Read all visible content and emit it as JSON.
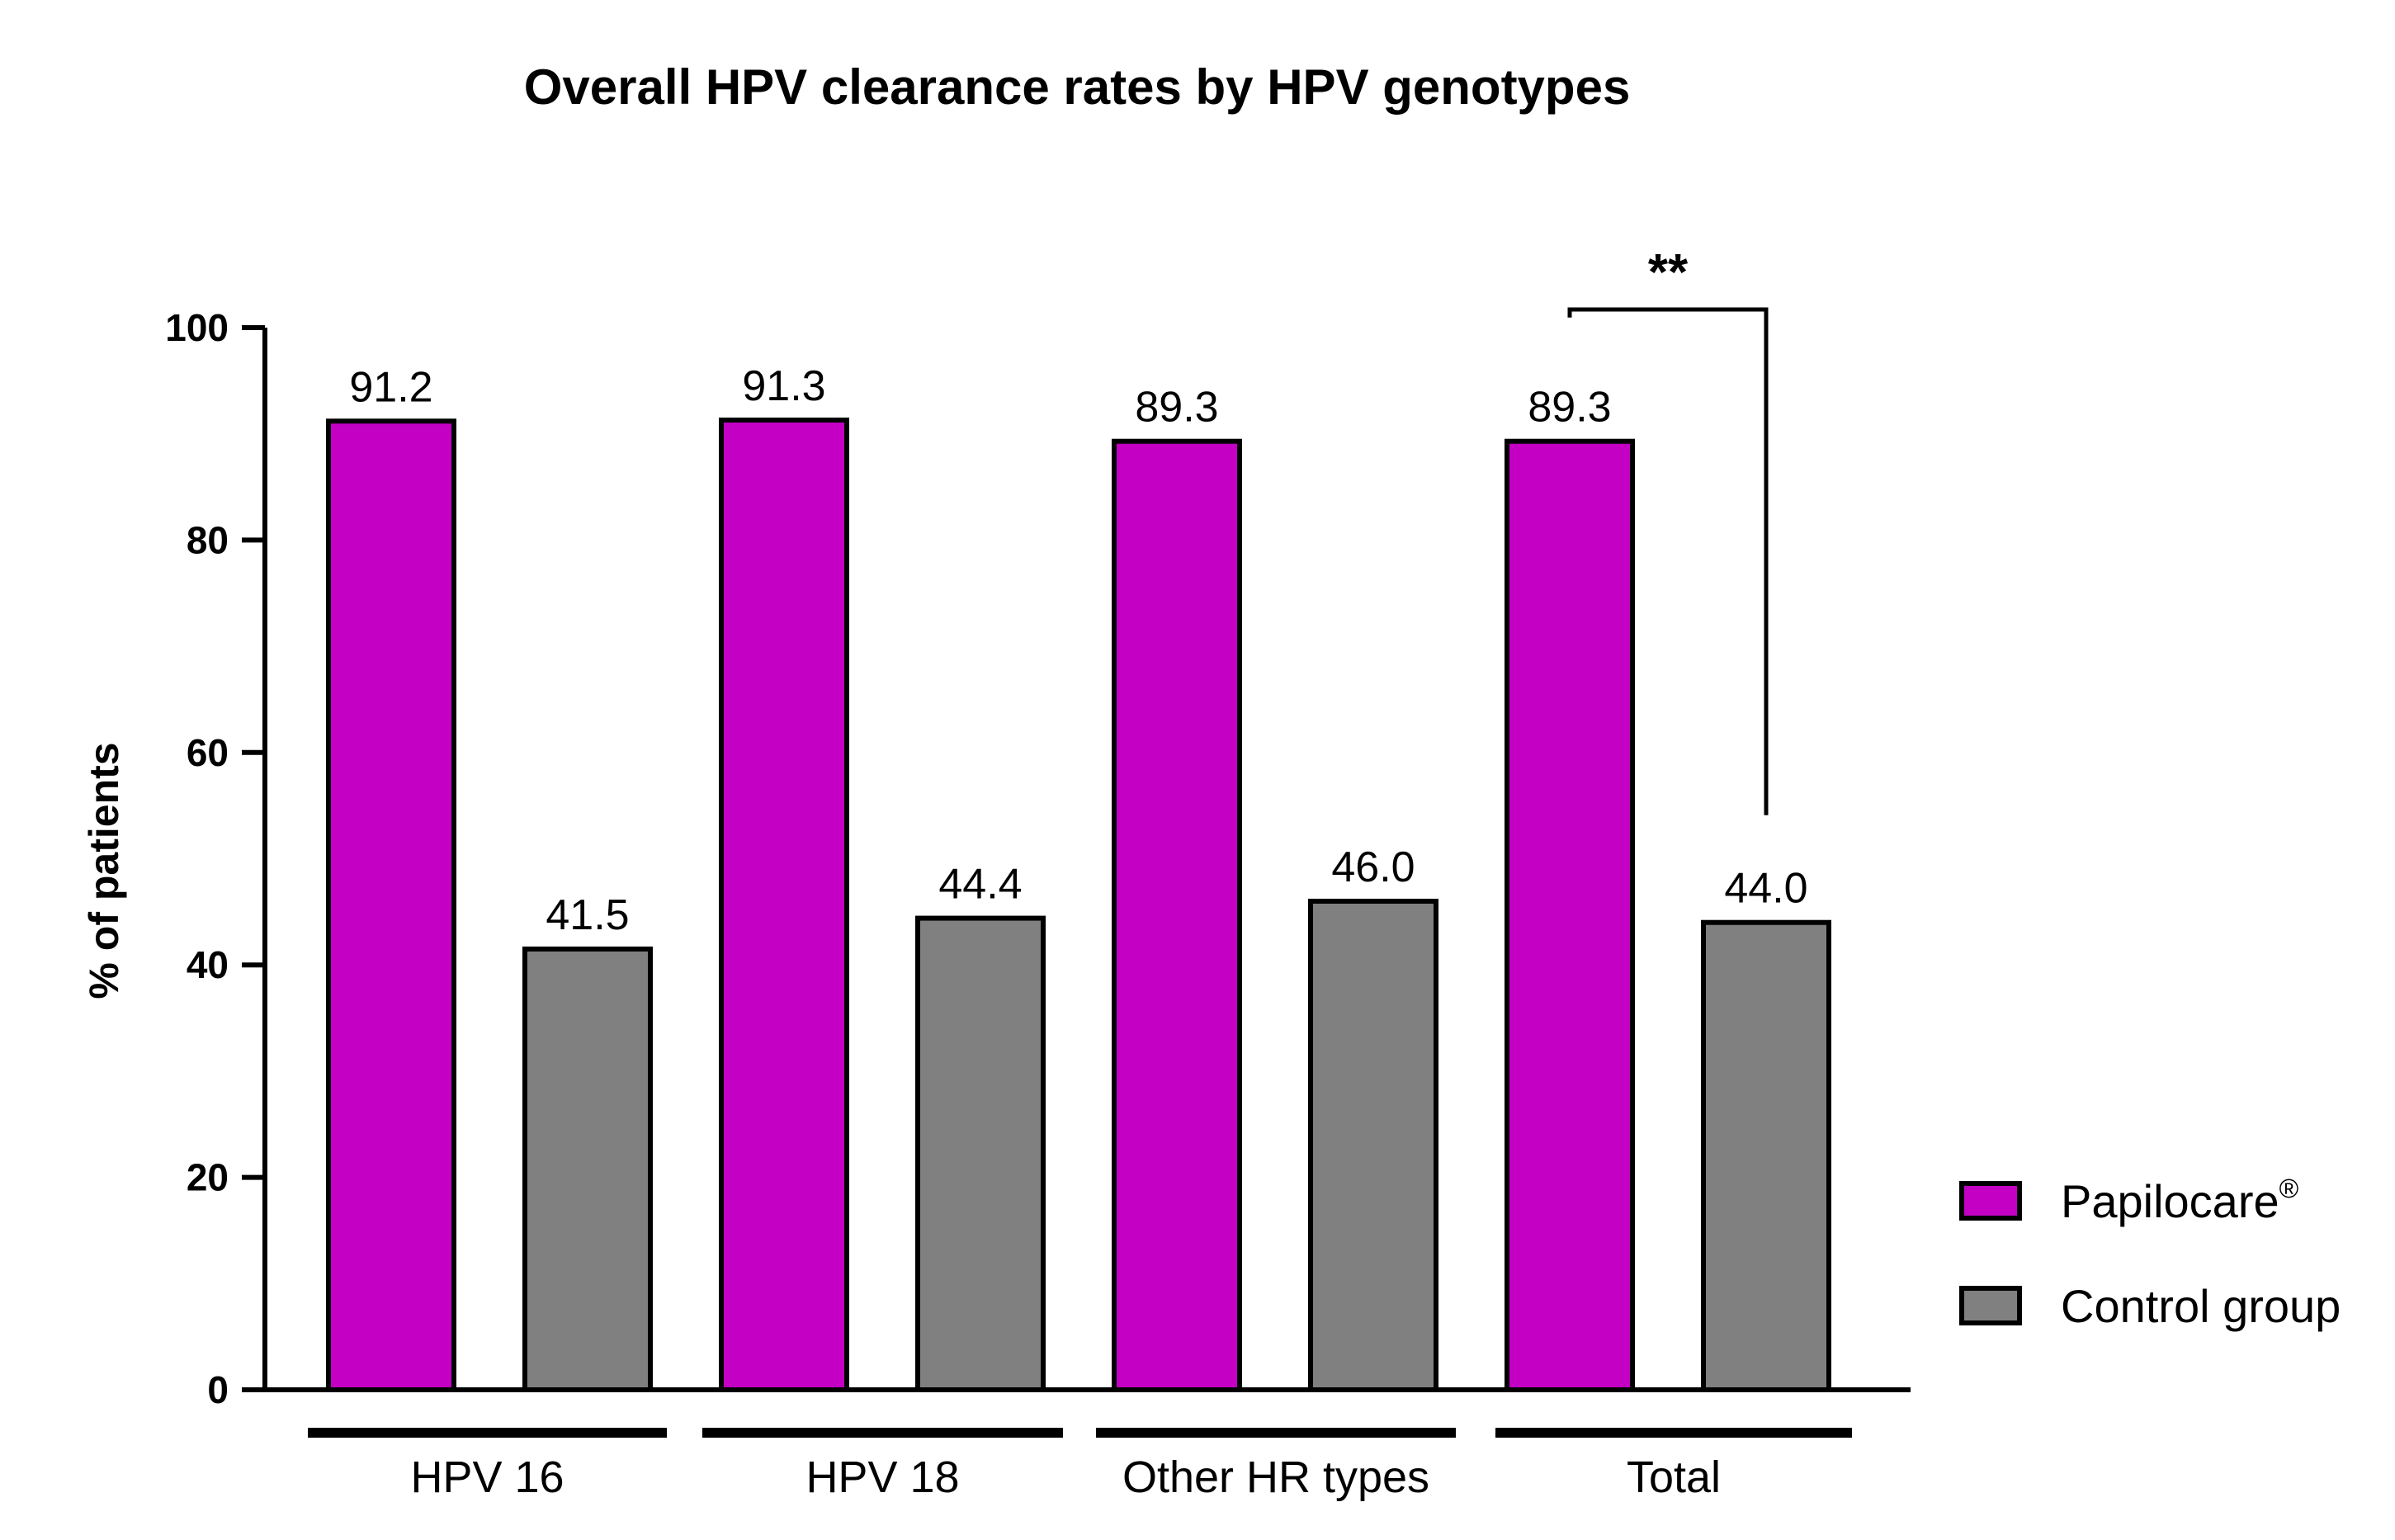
{
  "chart_data": {
    "type": "bar",
    "title": "Overall HPV clearance rates by HPV genotypes",
    "xlabel": "",
    "ylabel": "% of patients",
    "ylim": [
      0,
      100
    ],
    "yticks": [
      0,
      20,
      40,
      60,
      80,
      100
    ],
    "ytick_labels": [
      "0",
      "20",
      "40",
      "60",
      "80",
      "100"
    ],
    "categories": [
      "HPV 16",
      "HPV 18",
      "Other HR types",
      "Total"
    ],
    "series": [
      {
        "name": "Papilocare",
        "legend_label": "Papilocare",
        "legend_superscript": "®",
        "color": "#c400c4",
        "values": [
          91.2,
          91.3,
          89.3,
          89.3
        ],
        "labels": [
          "91.2",
          "91.3",
          "89.3",
          "89.3"
        ]
      },
      {
        "name": "Control group",
        "legend_label": "Control group",
        "legend_superscript": "",
        "color": "#808080",
        "values": [
          41.5,
          44.4,
          46.0,
          44.0
        ],
        "labels": [
          "41.5",
          "44.4",
          "46.0",
          "44.0"
        ]
      }
    ],
    "annotation": {
      "text": "**",
      "category": "Total",
      "y_value": 100
    },
    "grid": false,
    "legend_position": "right"
  }
}
